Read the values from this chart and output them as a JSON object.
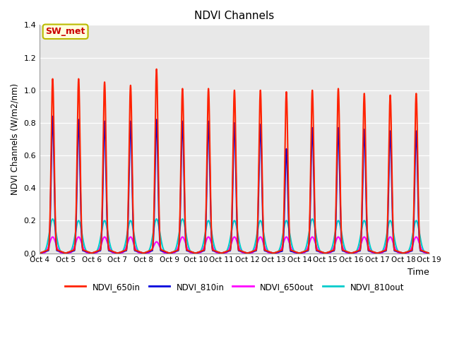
{
  "title": "NDVI Channels",
  "xlabel": "Time",
  "ylabel": "NDVI Channels (W/m2/nm)",
  "ylim": [
    0,
    1.4
  ],
  "background_color": "#e8e8e8",
  "annotation_text": "SW_met",
  "annotation_color": "#cc0000",
  "annotation_bg": "#ffffdd",
  "annotation_border": "#bbbb00",
  "series": {
    "NDVI_650in": {
      "color": "#ff2200",
      "alpha": 1.0,
      "lw": 1.5
    },
    "NDVI_810in": {
      "color": "#0000dd",
      "alpha": 1.0,
      "lw": 1.5
    },
    "NDVI_650out": {
      "color": "#ff00ff",
      "alpha": 1.0,
      "lw": 1.5
    },
    "NDVI_810out": {
      "color": "#00cccc",
      "alpha": 1.0,
      "lw": 1.5
    }
  },
  "tick_labels": [
    "Oct 4",
    "Oct 5",
    "Oct 6",
    "Oct 7",
    "Oct 8",
    "Oct 9",
    "Oct 10",
    "Oct 11",
    "Oct 12",
    "Oct 13",
    "Oct 14",
    "Oct 15",
    "Oct 16",
    "Oct 17",
    "Oct 18",
    "Oct 19"
  ],
  "peaks_650in": [
    1.07,
    1.07,
    1.05,
    1.03,
    1.13,
    1.01,
    1.01,
    1.0,
    1.0,
    0.99,
    1.0,
    1.01,
    0.98,
    0.97,
    0.98
  ],
  "peaks_810in": [
    0.84,
    0.82,
    0.81,
    0.81,
    0.82,
    0.81,
    0.81,
    0.8,
    0.79,
    0.64,
    0.77,
    0.77,
    0.76,
    0.75,
    0.75
  ],
  "peaks_650out": [
    0.1,
    0.1,
    0.1,
    0.1,
    0.07,
    0.1,
    0.1,
    0.1,
    0.1,
    0.1,
    0.1,
    0.1,
    0.1,
    0.1,
    0.1
  ],
  "peaks_810out": [
    0.21,
    0.2,
    0.2,
    0.2,
    0.21,
    0.21,
    0.2,
    0.2,
    0.2,
    0.2,
    0.21,
    0.2,
    0.2,
    0.2,
    0.2
  ],
  "figsize": [
    6.4,
    4.8
  ],
  "dpi": 100
}
